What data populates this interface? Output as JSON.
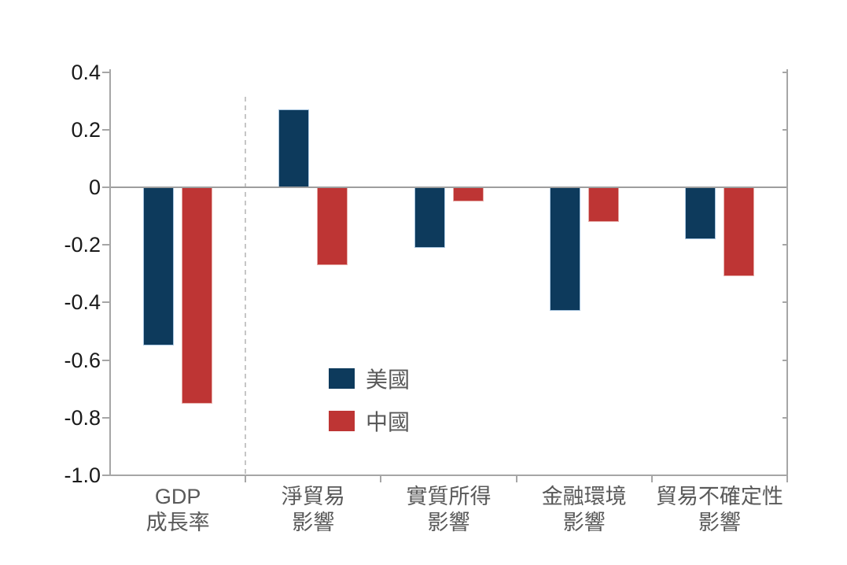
{
  "chart_data": {
    "type": "bar",
    "title": "",
    "xlabel": "",
    "ylabel": "",
    "categories": [
      [
        "GDP",
        "成長率"
      ],
      [
        "淨貿易",
        "影響"
      ],
      [
        "實質所得",
        "影響"
      ],
      [
        "金融環境",
        "影響"
      ],
      [
        "貿易不確定性",
        "影響"
      ]
    ],
    "series": [
      {
        "key": "us",
        "name": "美國",
        "color": "#0d3a5c",
        "border_color": "#a9c6e0",
        "values": [
          -0.55,
          0.27,
          -0.21,
          -0.43,
          -0.18
        ]
      },
      {
        "key": "china",
        "name": "中國",
        "color": "#be3534",
        "border_color": "#e6aca8",
        "values": [
          -0.75,
          -0.27,
          -0.05,
          -0.12,
          -0.31
        ]
      }
    ],
    "ylim": [
      -1.0,
      0.4
    ],
    "yticks": [
      0.4,
      0.2,
      0,
      -0.2,
      -0.4,
      -0.6,
      -0.8,
      -1.0
    ],
    "ytick_labels": [
      "0.4",
      "0.2",
      "0",
      "-0.2",
      "-0.4",
      "-0.6",
      "-0.8",
      "-1.0"
    ],
    "grid": false,
    "legend_position": "inside-lower-center",
    "separator_after_category_index": 0
  },
  "colors": {
    "background": "#ffffff",
    "axis_line": "#a6a6a6",
    "zero_line": "#9e9e9e",
    "dashed_separator": "#c6c6c6",
    "ytick_text": "#1a1a1a",
    "xtick_text": "#595959",
    "legend_text": "#595959"
  }
}
